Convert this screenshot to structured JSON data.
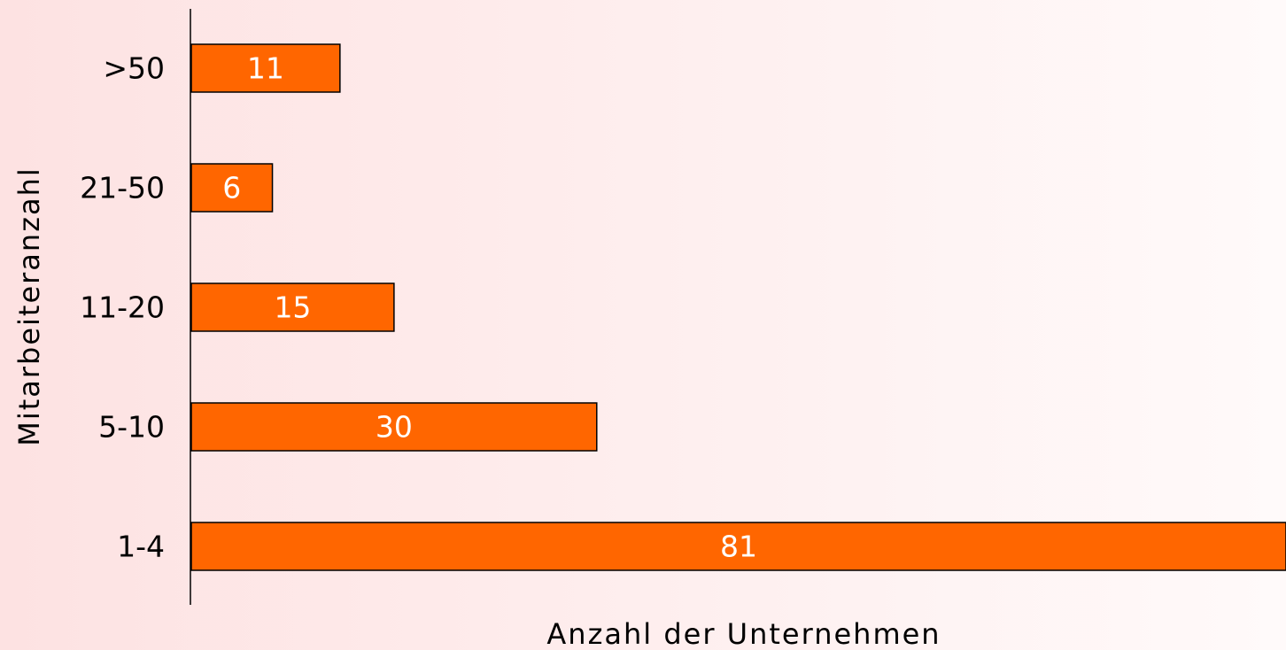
{
  "chart_data": {
    "type": "barh",
    "x_label": "Anzahl der Unternehmen",
    "y_label": "Mitarbeiteranzahl",
    "categories": [
      "1-4",
      "5-10",
      "11-20",
      "21-50",
      ">50"
    ],
    "values": [
      81,
      30,
      15,
      6,
      11
    ],
    "color": "#ff6600"
  }
}
